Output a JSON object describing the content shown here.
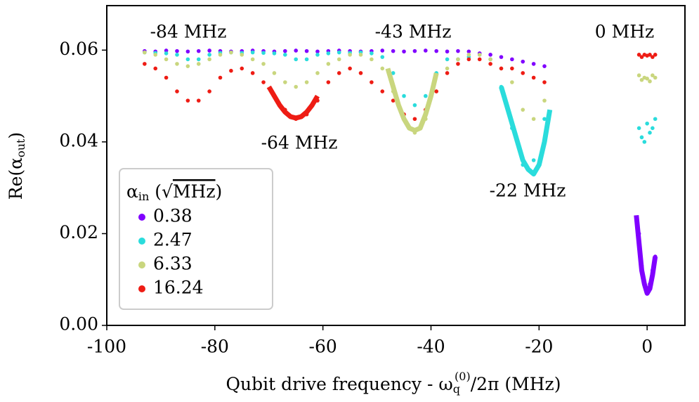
{
  "chart_data": {
    "type": "scatter",
    "xlabel": {
      "before": "Qubit drive frequency - ω",
      "subscript": "q",
      "superscript": "(0)",
      "after": "/2π (MHz)"
    },
    "ylabel": {
      "before": "Re(α",
      "subscript": "out",
      "after": ")"
    },
    "legend_title": {
      "before": "α",
      "subscript": "in",
      "middle": " (",
      "root": "√",
      "radicand": "MHz",
      "after": ")"
    },
    "legend_position": "lower left",
    "annotations": [
      "-84 MHz",
      "-43 MHz",
      "0 MHz",
      "-64 MHz",
      "-22 MHz"
    ],
    "xlim": [
      -100,
      7
    ],
    "ylim": [
      0,
      0.0697
    ],
    "xticks": [
      -100,
      -80,
      -60,
      -40,
      -20,
      0
    ],
    "yticks": [
      {
        "value": 0,
        "label": "0.00"
      },
      0.02,
      0.04,
      0.06
    ],
    "x": [
      -93,
      -91,
      -89,
      -87,
      -85,
      -83,
      -81,
      -79,
      -77,
      -75,
      -73,
      -71,
      -69,
      -67,
      -65,
      -63,
      -61,
      -59,
      -57,
      -55,
      -53,
      -51,
      -49,
      -47,
      -45,
      -43,
      -41,
      -39,
      -37,
      -35,
      -33,
      -31,
      -29,
      -27,
      -25,
      -23,
      -21,
      -19,
      -1.5,
      -1,
      -0.5,
      0,
      0.5,
      1,
      1.5
    ],
    "series": [
      {
        "name": "0.38",
        "color": "#8000ff",
        "values": [
          0.0598,
          0.0597,
          0.0599,
          0.0598,
          0.0597,
          0.0598,
          0.0599,
          0.0598,
          0.0597,
          0.0598,
          0.0599,
          0.0598,
          0.0597,
          0.0598,
          0.0599,
          0.0598,
          0.0597,
          0.0598,
          0.0599,
          0.0598,
          0.0597,
          0.0598,
          0.0599,
          0.0598,
          0.0597,
          0.0598,
          0.0599,
          0.0598,
          0.0597,
          0.0598,
          0.0597,
          0.0593,
          0.059,
          0.0585,
          0.058,
          0.0575,
          0.057,
          0.0565,
          0.02,
          0.013,
          0.009,
          0.007,
          0.009,
          0.012,
          0.015
        ],
        "fit": {
          "x": [
            -2,
            -1.5,
            -1,
            -0.5,
            0,
            0.5,
            1,
            1.5
          ],
          "values": [
            0.024,
            0.018,
            0.012,
            0.009,
            0.007,
            0.008,
            0.011,
            0.015
          ]
        }
      },
      {
        "name": "2.47",
        "color": "#2adcdc",
        "values": [
          0.0595,
          0.0594,
          0.0593,
          0.059,
          0.058,
          0.058,
          0.059,
          0.0594,
          0.0595,
          0.0594,
          0.0595,
          0.0594,
          0.0593,
          0.059,
          0.058,
          0.058,
          0.059,
          0.0593,
          0.0595,
          0.0594,
          0.0595,
          0.0593,
          0.0585,
          0.055,
          0.05,
          0.048,
          0.05,
          0.055,
          0.058,
          0.058,
          0.0585,
          0.059,
          0.058,
          0.052,
          0.043,
          0.035,
          0.036,
          0.045,
          0.043,
          0.041,
          0.04,
          0.044,
          0.042,
          0.043,
          0.045
        ],
        "fit": {
          "x": [
            -27,
            -26,
            -25,
            -24,
            -23,
            -22,
            -21,
            -20,
            -19,
            -18
          ],
          "values": [
            0.052,
            0.048,
            0.044,
            0.04,
            0.036,
            0.034,
            0.033,
            0.035,
            0.04,
            0.047
          ]
        }
      },
      {
        "name": "6.33",
        "color": "#c9d67e",
        "values": [
          0.0595,
          0.059,
          0.058,
          0.057,
          0.0565,
          0.057,
          0.058,
          0.059,
          0.0595,
          0.059,
          0.058,
          0.057,
          0.055,
          0.053,
          0.052,
          0.053,
          0.055,
          0.057,
          0.058,
          0.059,
          0.059,
          0.058,
          0.056,
          0.051,
          0.045,
          0.042,
          0.045,
          0.051,
          0.056,
          0.058,
          0.059,
          0.059,
          0.058,
          0.056,
          0.053,
          0.047,
          0.045,
          0.049,
          0.0545,
          0.0535,
          0.054,
          0.0538,
          0.0532,
          0.0545,
          0.054
        ],
        "fit": {
          "x": [
            -48,
            -47,
            -46,
            -45,
            -44,
            -43,
            -42,
            -41,
            -40,
            -39
          ],
          "values": [
            0.056,
            0.052,
            0.048,
            0.045,
            0.043,
            0.0425,
            0.043,
            0.046,
            0.05,
            0.055
          ]
        }
      },
      {
        "name": "16.24",
        "color": "#ee1c14",
        "values": [
          0.057,
          0.056,
          0.054,
          0.051,
          0.049,
          0.049,
          0.051,
          0.054,
          0.0555,
          0.056,
          0.055,
          0.053,
          0.05,
          0.047,
          0.045,
          0.046,
          0.049,
          0.053,
          0.055,
          0.056,
          0.055,
          0.053,
          0.051,
          0.049,
          0.046,
          0.045,
          0.047,
          0.051,
          0.055,
          0.057,
          0.058,
          0.058,
          0.057,
          0.056,
          0.056,
          0.055,
          0.054,
          0.053,
          0.059,
          0.0585,
          0.059,
          0.0588,
          0.059,
          0.0585,
          0.059
        ],
        "fit": {
          "x": [
            -70,
            -69,
            -68,
            -67,
            -66,
            -65,
            -64,
            -63,
            -62,
            -61
          ],
          "values": [
            0.052,
            0.05,
            0.048,
            0.0465,
            0.0455,
            0.0452,
            0.0455,
            0.0465,
            0.048,
            0.05
          ]
        }
      }
    ]
  }
}
